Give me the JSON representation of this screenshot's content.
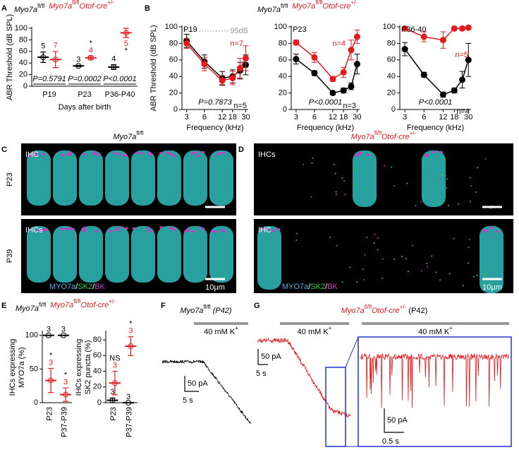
{
  "panel_labels": [
    "A",
    "B",
    "C",
    "D",
    "E",
    "F",
    "G"
  ],
  "chart_data": [
    {
      "type": "dot",
      "ylabel": "ABR Threshold (dB SPL)",
      "xlabel": "Days after birth",
      "categories": [
        "P19",
        "P23",
        "P36-P40"
      ],
      "ylim": [
        0,
        100
      ],
      "yticks": [
        0,
        20,
        40,
        60,
        80,
        100
      ],
      "p_values": [
        "P=0.5791",
        "P=0.0002",
        "P<0.0001"
      ],
      "comparisons": [
        null,
        "*",
        "*"
      ],
      "series": [
        {
          "name_parts": [
            "Myo7a",
            "fl/fl"
          ],
          "color": "#000000",
          "values": [
            50,
            35,
            33
          ],
          "errors": [
            9,
            1,
            4
          ],
          "n": [
            5,
            3,
            4
          ]
        },
        {
          "name_parts": [
            "Myo7a",
            "fl/fl",
            "Otof-cre",
            "+/-"
          ],
          "color": "#e41a1c",
          "values": [
            46,
            49,
            92
          ],
          "errors": [
            14,
            3,
            8
          ],
          "n": [
            7,
            4,
            5
          ]
        }
      ]
    },
    {
      "type": "line",
      "ylabel": "ABR Threshold (dB SPL)",
      "xlabel": "Frequency (kHz)",
      "subtitle": "P19",
      "p_value": "P=0.7873",
      "xlog": true,
      "x": [
        3,
        6,
        12,
        18,
        24,
        30
      ],
      "xlim": [
        2.5,
        33
      ],
      "xticks": [
        3,
        6,
        12,
        18,
        30
      ],
      "ylim": [
        0,
        100
      ],
      "yticks": [
        0,
        20,
        40,
        60,
        80,
        100
      ],
      "ref_line": {
        "value": 95,
        "label": "95dB"
      },
      "series": [
        {
          "color": "#000000",
          "n_label": "n=5",
          "values": [
            83,
            58,
            38,
            40,
            47,
            54
          ],
          "errors": [
            8,
            8,
            8,
            8,
            10,
            12
          ]
        },
        {
          "color": "#e41a1c",
          "n_label": "n=7",
          "values": [
            80,
            55,
            35,
            38,
            50,
            62
          ],
          "errors": [
            6,
            8,
            6,
            8,
            12,
            15
          ]
        }
      ]
    },
    {
      "type": "line",
      "xlabel": "Frequency (kHz)",
      "subtitle": "P23",
      "p_value": "P<0.0001",
      "xlog": true,
      "x": [
        3,
        6,
        12,
        18,
        24,
        30
      ],
      "xlim": [
        2.5,
        33
      ],
      "xticks": [
        3,
        6,
        12,
        18,
        30
      ],
      "ylim": [
        0,
        100
      ],
      "yticks": [
        0,
        20,
        40,
        60,
        80,
        100
      ],
      "series": [
        {
          "name_parts": [
            "Myo7a",
            "fl/fl"
          ],
          "color": "#000000",
          "n_label": "n=3",
          "values": [
            61,
            44,
            20,
            23,
            28,
            55
          ],
          "errors": [
            6,
            3,
            2,
            3,
            4,
            12
          ]
        },
        {
          "name_parts": [
            "Myo7a",
            "fl/fl",
            "Otof-cre",
            "+/-"
          ],
          "color": "#e41a1c",
          "n_label": "n=4",
          "values": [
            81,
            63,
            37,
            45,
            72,
            88
          ],
          "errors": [
            3,
            6,
            3,
            6,
            12,
            8
          ]
        }
      ]
    },
    {
      "type": "line",
      "xlabel": "Frequency (kHz)",
      "subtitle": "P36-40",
      "p_value": "P<0.0001",
      "xlog": true,
      "x": [
        3,
        6,
        12,
        18,
        24,
        30
      ],
      "xlim": [
        2.5,
        33
      ],
      "xticks": [
        3,
        6,
        12,
        18,
        30
      ],
      "ylim": [
        0,
        100
      ],
      "yticks": [
        0,
        20,
        40,
        60,
        80,
        100
      ],
      "series": [
        {
          "color": "#000000",
          "n_label": "n=4",
          "values": [
            73,
            42,
            18,
            23,
            36,
            60
          ],
          "errors": [
            8,
            3,
            3,
            3,
            10,
            20
          ]
        },
        {
          "color": "#e41a1c",
          "n_label": "n=5",
          "values": [
            98,
            88,
            84,
            98,
            98,
            99
          ],
          "errors": [
            2,
            6,
            10,
            2,
            2,
            1
          ]
        }
      ]
    },
    {
      "type": "dot",
      "ylabel_lines": [
        "IHCs expressing",
        "MYO7a (%)"
      ],
      "categories": [
        "P23",
        "P37-P39"
      ],
      "ylim": [
        0,
        105
      ],
      "yticks": [
        0,
        50,
        100
      ],
      "comparisons": [
        "*",
        "*"
      ],
      "series": [
        {
          "name_parts": [
            "Myo7a",
            "fl/fl"
          ],
          "color": "#000000",
          "values": [
            100,
            100
          ],
          "errors": [
            0,
            0
          ],
          "n": [
            3,
            3
          ]
        },
        {
          "name_parts": [
            "Myo7a",
            "fl/fl",
            "Otof-cre",
            "+/-"
          ],
          "color": "#e41a1c",
          "values": [
            33,
            12
          ],
          "errors": [
            18,
            10
          ],
          "n": [
            3,
            3
          ]
        }
      ]
    },
    {
      "type": "dot",
      "ylabel_lines": [
        "IHCs expressing",
        "SK2 puncta (%)"
      ],
      "categories": [
        "P23",
        "P37-P39"
      ],
      "ylim": [
        0,
        90
      ],
      "yticks": [
        0,
        20,
        40,
        60,
        80
      ],
      "comparisons": [
        "NS",
        "*"
      ],
      "series": [
        {
          "color": "#000000",
          "values": [
            3,
            0
          ],
          "errors": [
            3,
            0
          ],
          "n": [
            3,
            3
          ]
        },
        {
          "color": "#e41a1c",
          "values": [
            25,
            72
          ],
          "errors": [
            15,
            12
          ],
          "n": [
            3,
            3
          ]
        }
      ]
    }
  ],
  "image_panels": [
    {
      "title_parts": [
        "Myo7a",
        "fl/fl"
      ],
      "row_labels": [
        "P23",
        "P39"
      ],
      "cell_labels": [
        "IHC",
        "IHCs"
      ],
      "stain_parts": [
        "MYO7a",
        "/",
        "SK2",
        "/",
        "BK"
      ],
      "scale_bar": "10μm"
    },
    {
      "title_parts": [
        "Myo7a",
        "fl/fl",
        "Otof-cre",
        "+/-"
      ],
      "cell_labels": [
        "IHCs",
        "IHC"
      ],
      "stain_parts": [
        "MYO7a",
        "/",
        "SK2",
        "/",
        "BK"
      ],
      "scale_bar": "10μm"
    }
  ],
  "trace_panels": [
    {
      "title_parts": [
        "Myo7a",
        "fl/fl",
        " (P42)"
      ],
      "stim_parts": [
        "40 mM K",
        "+"
      ],
      "scale_y": "50 pA",
      "scale_x": "5 s"
    },
    {
      "title_parts": [
        "Myo7a",
        "fl/fl",
        "Otof-cre",
        "+/-",
        " (P42)"
      ],
      "stim_parts": [
        "40 mM K",
        "+"
      ],
      "scale_y": "50 pA",
      "scale_x": "5 s",
      "inset_stim_parts": [
        "40 mM K",
        "+"
      ],
      "inset_scale_y": "50 pA",
      "inset_scale_x": "0.5 s"
    }
  ]
}
